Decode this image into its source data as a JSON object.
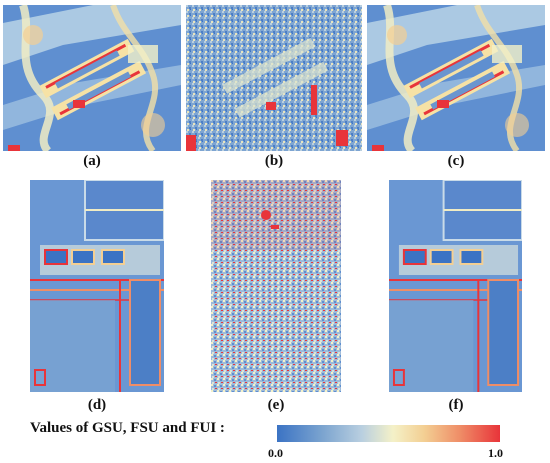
{
  "figure": {
    "panels": [
      {
        "id": "a",
        "caption": "(a)",
        "scene": "top"
      },
      {
        "id": "b",
        "caption": "(b)",
        "scene": "top-noisy"
      },
      {
        "id": "c",
        "caption": "(c)",
        "scene": "top"
      },
      {
        "id": "d",
        "caption": "(d)",
        "scene": "bottom"
      },
      {
        "id": "e",
        "caption": "(e)",
        "scene": "bottom-noisy"
      },
      {
        "id": "f",
        "caption": "(f)",
        "scene": "bottom"
      }
    ],
    "legend": {
      "label": "Values of GSU, FSU and FUI :",
      "min": "0.0",
      "max": "1.0",
      "colors": [
        "#3b73c4",
        "#b9cfe0",
        "#f4f1c8",
        "#ef8d67",
        "#e8343a"
      ]
    }
  }
}
